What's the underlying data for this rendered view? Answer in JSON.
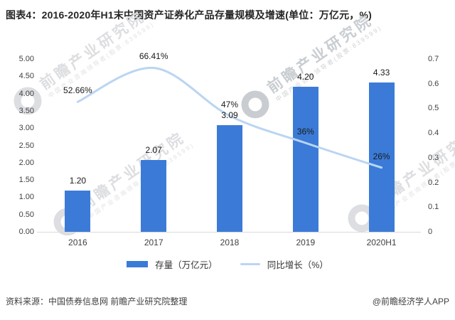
{
  "title": "图表4：2016-2020年H1末中国资产证券化产品存量规模及增速(单位：万亿元，%)",
  "chart_data": {
    "type": "bar",
    "subtype": "bar-line-combo",
    "categories": [
      "2016",
      "2017",
      "2018",
      "2019",
      "2020H1"
    ],
    "series": [
      {
        "name": "存量（万亿元）",
        "type": "bar",
        "axis": "left",
        "values": [
          1.2,
          2.07,
          3.09,
          4.2,
          4.33
        ],
        "labels": [
          "1.20",
          "2.07",
          "3.09",
          "4.20",
          "4.33"
        ]
      },
      {
        "name": "同比增长（%）",
        "type": "line",
        "axis": "right",
        "values": [
          0.5266,
          0.6641,
          0.47,
          0.36,
          0.26
        ],
        "labels": [
          "52.66%",
          "66.41%",
          "47%",
          "36%",
          "26%"
        ]
      }
    ],
    "left_axis": {
      "min": 0,
      "max": 5,
      "ticks": [
        "5.00",
        "4.50",
        "4.00",
        "3.50",
        "3.00",
        "2.50",
        "2.00",
        "1.50",
        "1.00",
        "0.50",
        "0.00"
      ]
    },
    "right_axis": {
      "min": 0,
      "max": 0.7,
      "ticks": [
        "0.7",
        "0.6",
        "0.5",
        "0.4",
        "0.3",
        "0.2",
        "0.1",
        "0"
      ]
    },
    "grid": false,
    "legend_position": "bottom"
  },
  "legend": {
    "bar_label": "存量（万亿元）",
    "line_label": "同比增长（%）"
  },
  "footer": {
    "source": "资料来源：中国债券信息网 前瞻产业研究院整理",
    "credit": "@前瞻经济学人APP"
  },
  "watermark": {
    "main": "前瞻产业研究院",
    "sub": "中国产业咨询领导者(股票:839599)"
  },
  "colors": {
    "bar": "#3B7BD7",
    "line": "#BAD5F2",
    "title_text": "#262626",
    "axis_text": "#404040",
    "baseline": "#D9D9D9",
    "watermark": "#DCDEE1"
  }
}
